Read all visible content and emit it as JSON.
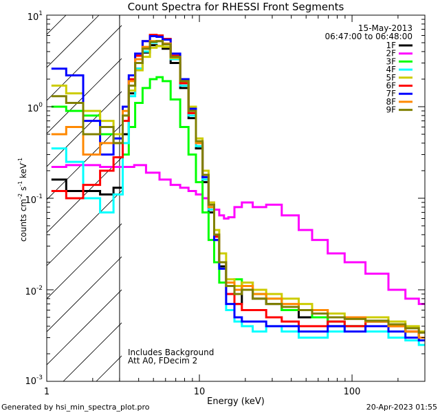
{
  "chart_data": {
    "type": "line",
    "title": "Count Spectra for RHESSI Front Segments",
    "xlabel": "Energy (keV)",
    "ylabel_main": "counts cm",
    "ylabel_sup1": "-2",
    "ylabel_mid1": " s",
    "ylabel_sup2": "-1",
    "ylabel_mid2": " keV",
    "ylabel_sup3": "-1",
    "xscale": "log",
    "yscale": "log",
    "xlim": [
      1,
      300
    ],
    "ylim": [
      0.001,
      10
    ],
    "x_ticks": [
      1,
      10,
      100
    ],
    "x_tick_labels": [
      "1",
      "10",
      "100"
    ],
    "y_ticks": [
      0.001,
      0.01,
      0.1,
      1,
      10
    ],
    "y_tick_base": [
      "10",
      "10",
      "10",
      "10",
      "10"
    ],
    "y_tick_exp": [
      "-3",
      "-2",
      "-1",
      "0",
      "1"
    ],
    "date": "15-May-2013",
    "time_range": "06:47:00 to 06:48:00",
    "annotation_line1": "Includes Background",
    "annotation_line2": "Att A0, FDecim 2",
    "attenuated_below_keV": 3,
    "footer_left": "Generated by hsi_min_spectra_plot.pro",
    "footer_right": "20-Apr-2023 01:55",
    "series": [
      {
        "name": "1F",
        "color": "#000000",
        "energies": [
          1.2,
          1.5,
          2.0,
          2.5,
          3.0,
          3.3,
          3.6,
          4.0,
          4.5,
          5.0,
          5.5,
          6.0,
          7.0,
          8.0,
          9.0,
          10.0,
          11.0,
          12.0,
          13.0,
          14.0,
          16.0,
          18.0,
          20.0,
          25.0,
          30.0,
          40.0,
          50.0,
          60.0,
          80.0,
          100.0,
          150.0,
          200.0,
          250.0,
          300.0
        ],
        "values": [
          0.16,
          0.12,
          0.12,
          0.11,
          0.13,
          0.5,
          1.4,
          2.6,
          3.9,
          4.7,
          4.6,
          4.3,
          3.0,
          1.6,
          0.75,
          0.35,
          0.15,
          0.07,
          0.035,
          0.018,
          0.012,
          0.007,
          0.012,
          0.008,
          0.007,
          0.006,
          0.005,
          0.005,
          0.004,
          0.004,
          0.0045,
          0.004,
          0.0035,
          0.003
        ]
      },
      {
        "name": "2F",
        "color": "#ff00ff",
        "energies": [
          1.2,
          1.5,
          2.0,
          2.5,
          3.0,
          3.5,
          4.0,
          5.0,
          6.0,
          7.0,
          8.0,
          9.0,
          10.0,
          11.0,
          12.0,
          13.0,
          14.0,
          15.0,
          16.0,
          18.0,
          20.0,
          25.0,
          30.0,
          40.0,
          50.0,
          60.0,
          80.0,
          100.0,
          150.0,
          200.0,
          250.0,
          300.0
        ],
        "values": [
          0.22,
          0.23,
          0.23,
          0.22,
          0.22,
          0.22,
          0.23,
          0.19,
          0.16,
          0.14,
          0.13,
          0.12,
          0.11,
          0.1,
          0.09,
          0.075,
          0.065,
          0.06,
          0.062,
          0.08,
          0.09,
          0.08,
          0.085,
          0.065,
          0.045,
          0.035,
          0.025,
          0.02,
          0.015,
          0.01,
          0.008,
          0.007
        ]
      },
      {
        "name": "3F",
        "color": "#00ff00",
        "energies": [
          1.2,
          1.5,
          2.0,
          2.5,
          3.0,
          3.3,
          3.6,
          4.0,
          4.5,
          5.0,
          5.5,
          6.0,
          7.0,
          8.0,
          9.0,
          10.0,
          11.0,
          12.0,
          13.0,
          14.0,
          16.0,
          18.0,
          20.0,
          25.0,
          30.0,
          40.0,
          50.0,
          60.0,
          80.0,
          100.0,
          150.0,
          200.0,
          250.0,
          300.0
        ],
        "values": [
          1.0,
          0.9,
          0.8,
          0.5,
          0.45,
          0.3,
          0.6,
          1.1,
          1.6,
          2.0,
          2.1,
          1.9,
          1.2,
          0.6,
          0.3,
          0.15,
          0.07,
          0.035,
          0.02,
          0.012,
          0.011,
          0.013,
          0.01,
          0.009,
          0.008,
          0.006,
          0.006,
          0.005,
          0.0045,
          0.004,
          0.0045,
          0.004,
          0.0035,
          0.003
        ]
      },
      {
        "name": "4F",
        "color": "#00ffff",
        "energies": [
          1.2,
          1.5,
          2.0,
          2.5,
          3.0,
          3.3,
          3.6,
          4.0,
          4.5,
          5.0,
          5.5,
          6.0,
          7.0,
          8.0,
          9.0,
          10.0,
          11.0,
          12.0,
          13.0,
          14.0,
          16.0,
          18.0,
          20.0,
          25.0,
          30.0,
          40.0,
          50.0,
          60.0,
          80.0,
          100.0,
          150.0,
          200.0,
          250.0,
          300.0
        ],
        "values": [
          0.35,
          0.25,
          0.1,
          0.07,
          0.11,
          0.4,
          1.3,
          2.6,
          4.0,
          5.0,
          5.2,
          4.9,
          3.3,
          1.7,
          0.8,
          0.37,
          0.16,
          0.075,
          0.035,
          0.017,
          0.006,
          0.0045,
          0.004,
          0.0035,
          0.004,
          0.0035,
          0.003,
          0.003,
          0.0035,
          0.004,
          0.0035,
          0.003,
          0.0028,
          0.0025
        ]
      },
      {
        "name": "5F",
        "color": "#cccc00",
        "energies": [
          1.2,
          1.5,
          2.0,
          2.5,
          3.0,
          3.3,
          3.6,
          4.0,
          4.5,
          5.0,
          5.5,
          6.0,
          7.0,
          8.0,
          9.0,
          10.0,
          11.0,
          12.0,
          13.0,
          14.0,
          16.0,
          18.0,
          20.0,
          25.0,
          30.0,
          40.0,
          50.0,
          60.0,
          80.0,
          100.0,
          150.0,
          200.0,
          250.0,
          300.0
        ],
        "values": [
          1.7,
          1.4,
          0.9,
          0.7,
          0.5,
          0.8,
          1.5,
          2.5,
          3.5,
          4.4,
          4.6,
          4.5,
          3.4,
          2.0,
          1.0,
          0.45,
          0.2,
          0.09,
          0.045,
          0.025,
          0.013,
          0.011,
          0.012,
          0.01,
          0.009,
          0.008,
          0.007,
          0.006,
          0.0055,
          0.005,
          0.005,
          0.0045,
          0.004,
          0.0035
        ]
      },
      {
        "name": "6F",
        "color": "#ff0000",
        "energies": [
          1.2,
          1.5,
          2.0,
          2.5,
          3.0,
          3.3,
          3.6,
          4.0,
          4.5,
          5.0,
          5.5,
          6.0,
          7.0,
          8.0,
          9.0,
          10.0,
          11.0,
          12.0,
          13.0,
          14.0,
          16.0,
          18.0,
          20.0,
          25.0,
          30.0,
          40.0,
          50.0,
          60.0,
          80.0,
          100.0,
          150.0,
          200.0,
          250.0,
          300.0
        ],
        "values": [
          0.12,
          0.1,
          0.14,
          0.2,
          0.28,
          0.7,
          2.0,
          3.6,
          5.2,
          6.1,
          6.0,
          5.5,
          3.6,
          1.8,
          0.85,
          0.4,
          0.17,
          0.08,
          0.038,
          0.02,
          0.009,
          0.007,
          0.006,
          0.006,
          0.005,
          0.0045,
          0.004,
          0.004,
          0.0045,
          0.004,
          0.0045,
          0.004,
          0.0035,
          0.003
        ]
      },
      {
        "name": "7F",
        "color": "#0000ff",
        "energies": [
          1.2,
          1.5,
          2.0,
          2.5,
          3.0,
          3.3,
          3.6,
          4.0,
          4.5,
          5.0,
          5.5,
          6.0,
          7.0,
          8.0,
          9.0,
          10.0,
          11.0,
          12.0,
          13.0,
          14.0,
          16.0,
          18.0,
          20.0,
          25.0,
          30.0,
          40.0,
          50.0,
          60.0,
          80.0,
          100.0,
          150.0,
          200.0,
          250.0,
          300.0
        ],
        "values": [
          2.6,
          2.2,
          0.7,
          0.3,
          0.45,
          1.0,
          2.2,
          3.8,
          5.2,
          5.9,
          5.8,
          5.4,
          3.8,
          2.0,
          0.95,
          0.4,
          0.17,
          0.08,
          0.035,
          0.017,
          0.007,
          0.005,
          0.0045,
          0.0045,
          0.004,
          0.004,
          0.0035,
          0.0035,
          0.004,
          0.0035,
          0.004,
          0.0035,
          0.003,
          0.0028
        ]
      },
      {
        "name": "8F",
        "color": "#ff8800",
        "energies": [
          1.2,
          1.5,
          2.0,
          2.5,
          3.0,
          3.3,
          3.6,
          4.0,
          4.5,
          5.0,
          5.5,
          6.0,
          7.0,
          8.0,
          9.0,
          10.0,
          11.0,
          12.0,
          13.0,
          14.0,
          16.0,
          18.0,
          20.0,
          25.0,
          30.0,
          40.0,
          50.0,
          60.0,
          80.0,
          100.0,
          150.0,
          200.0,
          250.0,
          300.0
        ],
        "values": [
          0.5,
          0.6,
          0.3,
          0.4,
          0.4,
          0.9,
          1.9,
          3.3,
          4.5,
          5.2,
          5.2,
          4.9,
          3.5,
          1.9,
          0.9,
          0.4,
          0.18,
          0.08,
          0.04,
          0.02,
          0.012,
          0.01,
          0.011,
          0.009,
          0.008,
          0.007,
          0.006,
          0.006,
          0.005,
          0.005,
          0.0045,
          0.004,
          0.0035,
          0.003
        ]
      },
      {
        "name": "9F",
        "color": "#808000",
        "energies": [
          1.2,
          1.5,
          2.0,
          2.5,
          3.0,
          3.3,
          3.6,
          4.0,
          4.5,
          5.0,
          5.5,
          6.0,
          7.0,
          8.0,
          9.0,
          10.0,
          11.0,
          12.0,
          13.0,
          14.0,
          16.0,
          18.0,
          20.0,
          25.0,
          30.0,
          40.0,
          50.0,
          60.0,
          80.0,
          100.0,
          150.0,
          200.0,
          250.0,
          300.0
        ],
        "values": [
          1.3,
          1.1,
          0.5,
          0.6,
          0.4,
          0.8,
          1.7,
          3.0,
          4.3,
          5.1,
          5.2,
          4.8,
          3.5,
          1.9,
          0.9,
          0.42,
          0.18,
          0.085,
          0.04,
          0.02,
          0.011,
          0.009,
          0.01,
          0.008,
          0.007,
          0.0065,
          0.006,
          0.0055,
          0.005,
          0.0048,
          0.0046,
          0.0042,
          0.0038,
          0.0034
        ]
      }
    ]
  }
}
